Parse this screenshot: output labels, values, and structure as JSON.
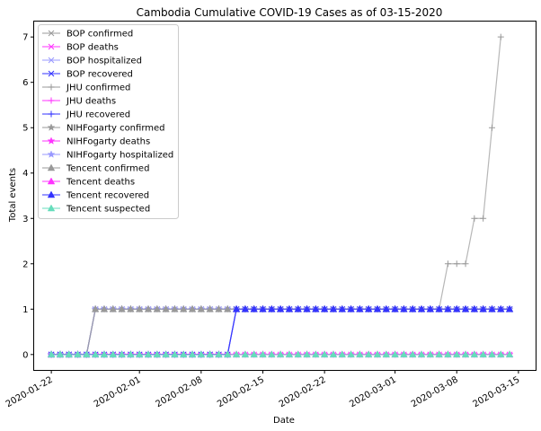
{
  "chart_data": {
    "type": "line",
    "title": "Cambodia Cumulative COVID-19 Cases as of 03-15-2020",
    "xlabel": "Date",
    "ylabel": "Total events",
    "x_start": "2020-01-22",
    "x_end": "2020-03-14",
    "xlim": [
      "2020-01-20",
      "2020-03-17"
    ],
    "ylim": [
      -0.35,
      7.35
    ],
    "y_ticks": [
      0,
      1,
      2,
      3,
      4,
      5,
      6,
      7
    ],
    "x_ticks": [
      "2020-01-22",
      "2020-02-01",
      "2020-02-08",
      "2020-02-15",
      "2020-02-22",
      "2020-03-01",
      "2020-03-08",
      "2020-03-15"
    ],
    "grid": false,
    "legend_position": "top-left",
    "series": [
      {
        "name": "BOP confirmed",
        "color": "#999999",
        "marker": "x",
        "points": [
          [
            "2020-01-22",
            0
          ],
          [
            "2020-01-26",
            0
          ],
          [
            "2020-01-27",
            1
          ],
          [
            "2020-03-14",
            1
          ]
        ]
      },
      {
        "name": "BOP deaths",
        "color": "#ff33ff",
        "marker": "x",
        "points": [
          [
            "2020-01-22",
            0
          ],
          [
            "2020-03-14",
            0
          ]
        ]
      },
      {
        "name": "BOP hospitalized",
        "color": "#9999ff",
        "marker": "x",
        "points": [
          [
            "2020-01-22",
            0
          ],
          [
            "2020-01-26",
            0
          ],
          [
            "2020-01-27",
            1
          ],
          [
            "2020-03-14",
            1
          ]
        ]
      },
      {
        "name": "BOP recovered",
        "color": "#3333ff",
        "marker": "x",
        "points": [
          [
            "2020-01-22",
            0
          ],
          [
            "2020-02-11",
            0
          ],
          [
            "2020-02-12",
            1
          ],
          [
            "2020-03-14",
            1
          ]
        ]
      },
      {
        "name": "JHU confirmed",
        "color": "#999999",
        "marker": "+",
        "points": [
          [
            "2020-01-22",
            0
          ],
          [
            "2020-01-26",
            0
          ],
          [
            "2020-01-27",
            1
          ],
          [
            "2020-03-06",
            1
          ],
          [
            "2020-03-07",
            2
          ],
          [
            "2020-03-09",
            2
          ],
          [
            "2020-03-10",
            3
          ],
          [
            "2020-03-11",
            3
          ],
          [
            "2020-03-12",
            5
          ],
          [
            "2020-03-13",
            7
          ]
        ]
      },
      {
        "name": "JHU deaths",
        "color": "#ff33ff",
        "marker": "+",
        "points": [
          [
            "2020-01-22",
            0
          ],
          [
            "2020-03-13",
            0
          ]
        ]
      },
      {
        "name": "JHU recovered",
        "color": "#3333ff",
        "marker": "+",
        "points": [
          [
            "2020-01-22",
            0
          ],
          [
            "2020-02-11",
            0
          ],
          [
            "2020-02-12",
            1
          ],
          [
            "2020-03-13",
            1
          ]
        ]
      },
      {
        "name": "NIHFogarty confirmed",
        "color": "#999999",
        "marker": "*",
        "points": [
          [
            "2020-01-22",
            0
          ],
          [
            "2020-01-26",
            0
          ],
          [
            "2020-01-27",
            1
          ],
          [
            "2020-03-14",
            1
          ]
        ]
      },
      {
        "name": "NIHFogarty deaths",
        "color": "#ff33ff",
        "marker": "*",
        "points": [
          [
            "2020-01-22",
            0
          ],
          [
            "2020-03-14",
            0
          ]
        ]
      },
      {
        "name": "NIHFogarty hospitalized",
        "color": "#9999ff",
        "marker": "*",
        "points": [
          [
            "2020-01-22",
            0
          ],
          [
            "2020-01-26",
            0
          ],
          [
            "2020-01-27",
            1
          ],
          [
            "2020-03-14",
            1
          ]
        ]
      },
      {
        "name": "Tencent confirmed",
        "color": "#999999",
        "marker": "^",
        "points": [
          [
            "2020-01-22",
            0
          ],
          [
            "2020-01-26",
            0
          ],
          [
            "2020-01-27",
            1
          ],
          [
            "2020-03-14",
            1
          ]
        ]
      },
      {
        "name": "Tencent deaths",
        "color": "#ff33ff",
        "marker": "^",
        "points": [
          [
            "2020-01-22",
            0
          ],
          [
            "2020-03-14",
            0
          ]
        ]
      },
      {
        "name": "Tencent recovered",
        "color": "#3333ff",
        "marker": "^",
        "points": [
          [
            "2020-01-22",
            0
          ],
          [
            "2020-02-11",
            0
          ],
          [
            "2020-02-12",
            1
          ],
          [
            "2020-03-14",
            1
          ]
        ]
      },
      {
        "name": "Tencent suspected",
        "color": "#66ddbb",
        "marker": "^",
        "points": [
          [
            "2020-01-22",
            0
          ],
          [
            "2020-03-14",
            0
          ]
        ]
      }
    ]
  }
}
